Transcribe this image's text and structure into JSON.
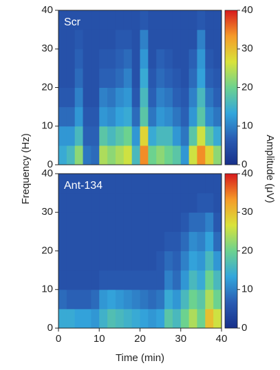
{
  "chart_data": [
    {
      "type": "heatmap",
      "annotation": "Scr",
      "ylabel": "Frequency (Hz)",
      "colorbar_label": "Amplitude (μV)",
      "xlim": [
        0,
        40
      ],
      "ylim": [
        0,
        40
      ],
      "yticks": [
        0,
        10,
        20,
        30,
        40
      ],
      "x": [
        1,
        3,
        5,
        7,
        9,
        11,
        13,
        15,
        17,
        19,
        21,
        23,
        25,
        27,
        29,
        31,
        33,
        35,
        37,
        39
      ],
      "y": [
        2.5,
        7.5,
        12.5,
        17.5,
        22.5,
        27.5,
        32.5,
        37.5
      ],
      "values": [
        [
          14,
          16,
          22,
          9,
          8,
          24,
          22,
          24,
          26,
          16,
          34,
          20,
          22,
          20,
          18,
          12,
          26,
          34,
          28,
          22
        ],
        [
          12,
          12,
          16,
          7,
          7,
          18,
          16,
          18,
          20,
          12,
          28,
          14,
          16,
          16,
          12,
          9,
          18,
          26,
          18,
          14
        ],
        [
          8,
          8,
          12,
          6,
          6,
          12,
          11,
          13,
          14,
          8,
          18,
          9,
          12,
          11,
          9,
          7,
          12,
          18,
          11,
          9
        ],
        [
          6,
          6,
          10,
          5,
          5,
          10,
          9,
          11,
          12,
          6,
          16,
          7,
          10,
          9,
          7,
          6,
          10,
          16,
          9,
          7
        ],
        [
          5,
          5,
          8,
          5,
          5,
          7,
          7,
          8,
          10,
          5,
          14,
          6,
          8,
          7,
          6,
          5,
          8,
          13,
          7,
          6
        ],
        [
          5,
          5,
          7,
          5,
          5,
          6,
          6,
          7,
          8,
          5,
          12,
          5,
          7,
          6,
          5,
          5,
          7,
          12,
          6,
          5
        ],
        [
          5,
          5,
          6,
          5,
          5,
          5,
          5,
          6,
          6,
          5,
          10,
          5,
          5,
          5,
          5,
          5,
          5,
          10,
          5,
          5
        ],
        [
          5,
          5,
          5,
          5,
          5,
          5,
          5,
          5,
          5,
          5,
          6,
          5,
          5,
          5,
          5,
          5,
          5,
          6,
          5,
          5
        ]
      ],
      "clim": [
        0,
        40
      ],
      "cticks": [
        0,
        10,
        20,
        30,
        40
      ],
      "colormap": [
        "#18308a",
        "#2a5cb3",
        "#33a6dc",
        "#6cd28f",
        "#d9e33a",
        "#f59a28",
        "#d7191c"
      ]
    },
    {
      "type": "heatmap",
      "annotation": "Ant-134",
      "xlabel": "Time (min)",
      "xlim": [
        0,
        40
      ],
      "ylim": [
        0,
        40
      ],
      "xticks": [
        0,
        10,
        20,
        30,
        40
      ],
      "yticks": [
        0,
        10,
        20,
        30,
        40
      ],
      "x": [
        1,
        3,
        5,
        7,
        9,
        11,
        13,
        15,
        17,
        19,
        21,
        23,
        25,
        27,
        29,
        31,
        33,
        35,
        37,
        39
      ],
      "y": [
        2.5,
        7.5,
        12.5,
        17.5,
        22.5,
        27.5,
        32.5,
        37.5
      ],
      "values": [
        [
          14,
          14,
          13,
          13,
          12,
          15,
          17,
          16,
          15,
          14,
          13,
          12,
          13,
          18,
          16,
          20,
          24,
          20,
          30,
          26
        ],
        [
          8,
          7,
          7,
          7,
          8,
          12,
          13,
          12,
          11,
          10,
          9,
          8,
          9,
          14,
          12,
          16,
          20,
          18,
          24,
          20
        ],
        [
          5,
          5,
          5,
          5,
          5,
          6,
          6,
          6,
          6,
          6,
          6,
          6,
          6,
          10,
          8,
          12,
          16,
          14,
          20,
          16
        ],
        [
          5,
          5,
          5,
          5,
          5,
          5,
          5,
          5,
          5,
          5,
          5,
          5,
          6,
          8,
          7,
          10,
          13,
          12,
          16,
          12
        ],
        [
          5,
          5,
          5,
          5,
          5,
          5,
          5,
          5,
          5,
          5,
          5,
          5,
          5,
          6,
          6,
          8,
          11,
          10,
          13,
          8
        ],
        [
          5,
          5,
          5,
          5,
          5,
          5,
          5,
          5,
          5,
          5,
          5,
          5,
          5,
          5,
          5,
          6,
          8,
          8,
          10,
          6
        ],
        [
          5,
          5,
          5,
          5,
          5,
          5,
          5,
          5,
          5,
          5,
          5,
          5,
          5,
          5,
          5,
          5,
          5,
          6,
          6,
          5
        ],
        [
          5,
          5,
          5,
          5,
          5,
          5,
          5,
          5,
          5,
          5,
          5,
          5,
          5,
          5,
          5,
          5,
          5,
          5,
          5,
          5
        ]
      ],
      "clim": [
        0,
        40
      ],
      "cticks": [
        0,
        10,
        20,
        30,
        40
      ],
      "colormap": [
        "#18308a",
        "#2a5cb3",
        "#33a6dc",
        "#6cd28f",
        "#d9e33a",
        "#f59a28",
        "#d7191c"
      ]
    }
  ]
}
